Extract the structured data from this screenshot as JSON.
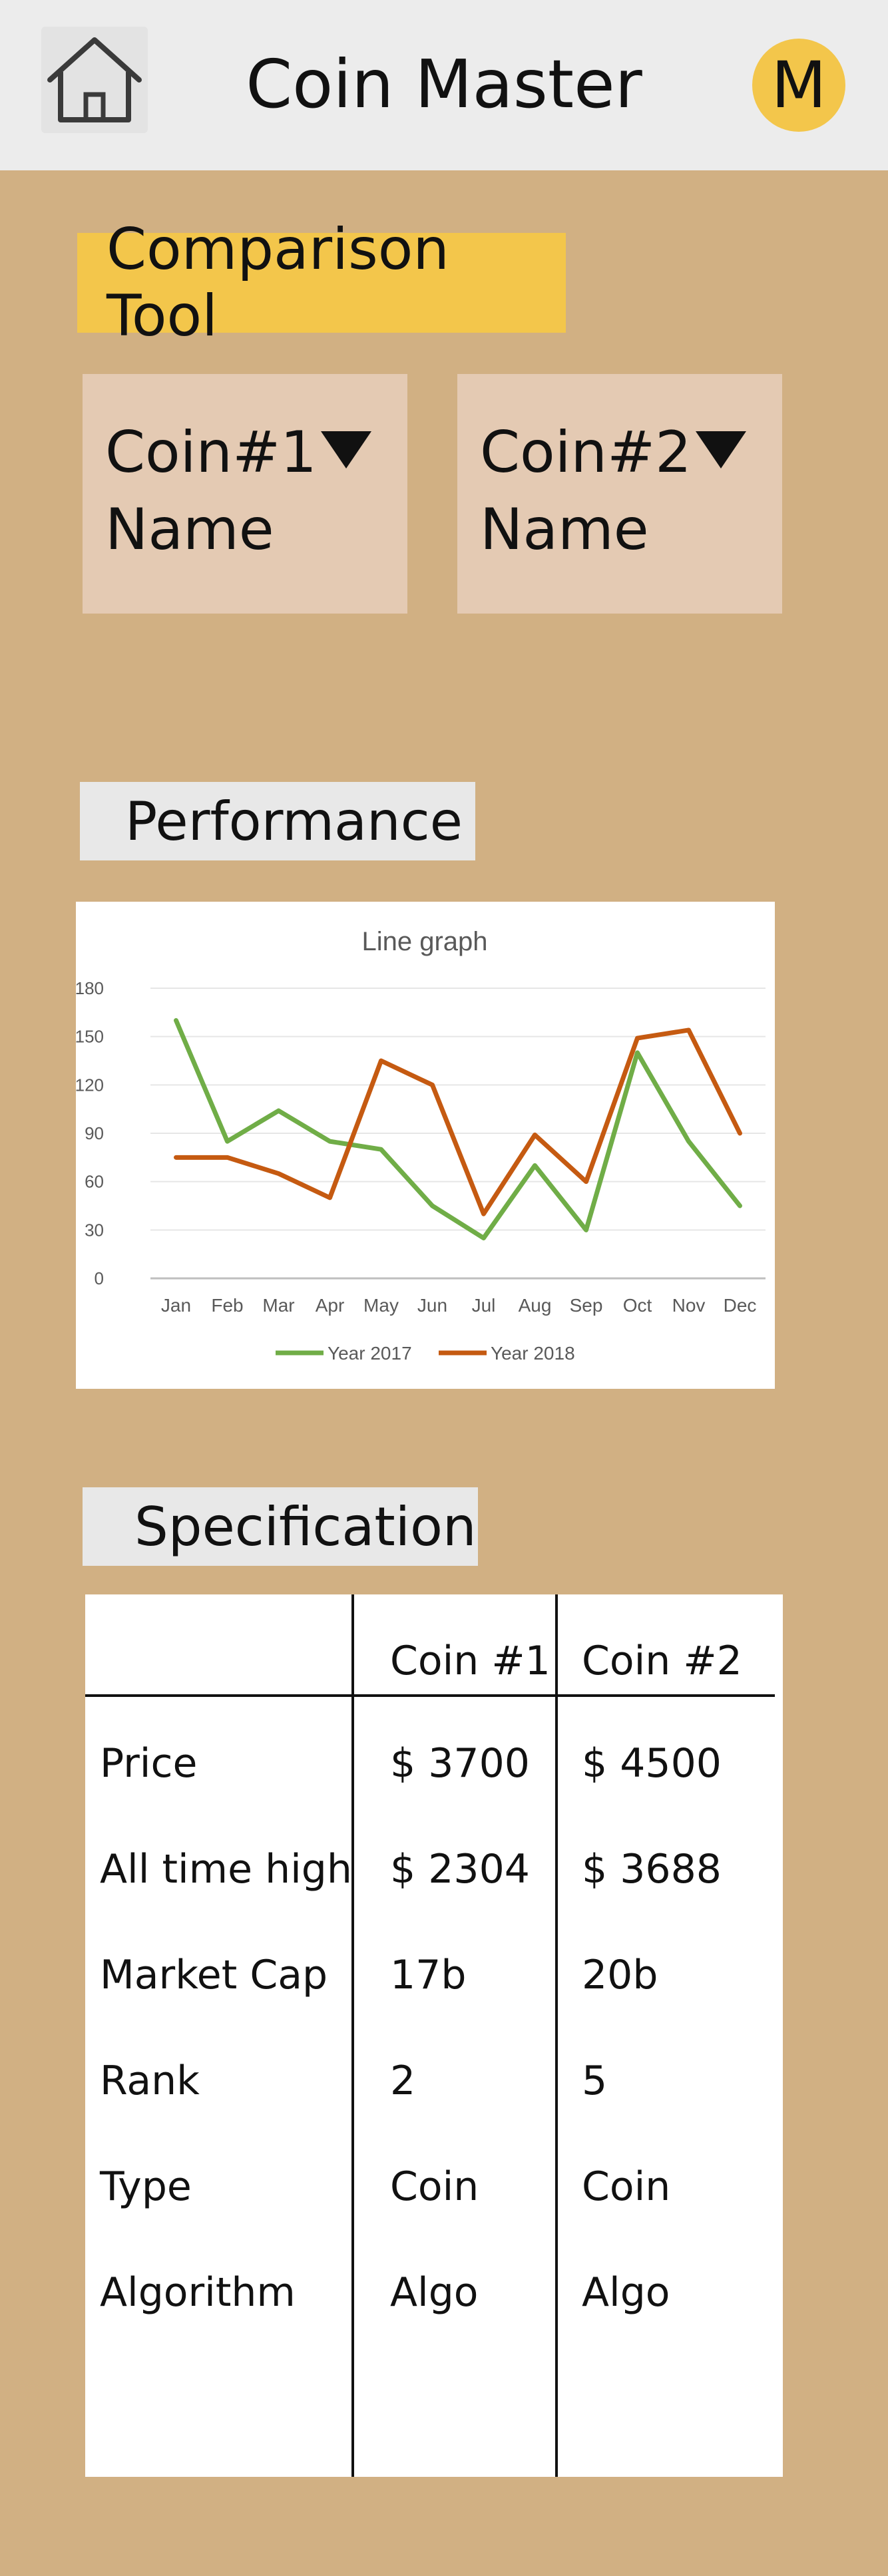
{
  "header": {
    "title": "Coin Master",
    "avatar_initial": "M",
    "home_icon": "house-icon"
  },
  "comparison": {
    "label": "Comparison Tool",
    "coin1": {
      "label_line1": "Coin#1",
      "label_line2": "Name"
    },
    "coin2": {
      "label_line1": "Coin#2",
      "label_line2": "Name"
    }
  },
  "performance": {
    "label": "Performance"
  },
  "chart_data": {
    "type": "line",
    "title": "Line graph",
    "categories": [
      "Jan",
      "Feb",
      "Mar",
      "Apr",
      "May",
      "Jun",
      "Jul",
      "Aug",
      "Sep",
      "Oct",
      "Nov",
      "Dec"
    ],
    "series": [
      {
        "name": "Year 2017",
        "color": "#70ad47",
        "values": [
          160,
          85,
          104,
          85,
          80,
          45,
          25,
          70,
          30,
          140,
          85,
          45
        ]
      },
      {
        "name": "Year 2018",
        "color": "#c55a11",
        "values": [
          75,
          75,
          65,
          50,
          135,
          120,
          40,
          89,
          60,
          149,
          154,
          90
        ]
      }
    ],
    "ylim": [
      0,
      180
    ],
    "yticks": [
      "0",
      "30",
      "60",
      "90",
      "120",
      "150",
      "180"
    ],
    "grid": true,
    "legend": "bottom"
  },
  "specification": {
    "label": "Specification",
    "columns": [
      "",
      "Coin #1",
      "Coin #2"
    ],
    "rows": [
      {
        "label": "Price",
        "coin1": "$ 3700",
        "coin2": "$ 4500"
      },
      {
        "label": "All time high",
        "coin1": "$ 2304",
        "coin2": "$ 3688"
      },
      {
        "label": "Market Cap",
        "coin1": "17b",
        "coin2": "20b"
      },
      {
        "label": "Rank",
        "coin1": "2",
        "coin2": "5"
      },
      {
        "label": "Type",
        "coin1": "Coin",
        "coin2": "Coin"
      },
      {
        "label": "Algorithm",
        "coin1": "Algo",
        "coin2": "Algo"
      }
    ]
  },
  "colors": {
    "background": "#d1b083",
    "header": "#ececec",
    "accent_yellow": "#f3c64b",
    "select_bg": "#e4cab3",
    "label_bg": "#e8e8e8"
  }
}
